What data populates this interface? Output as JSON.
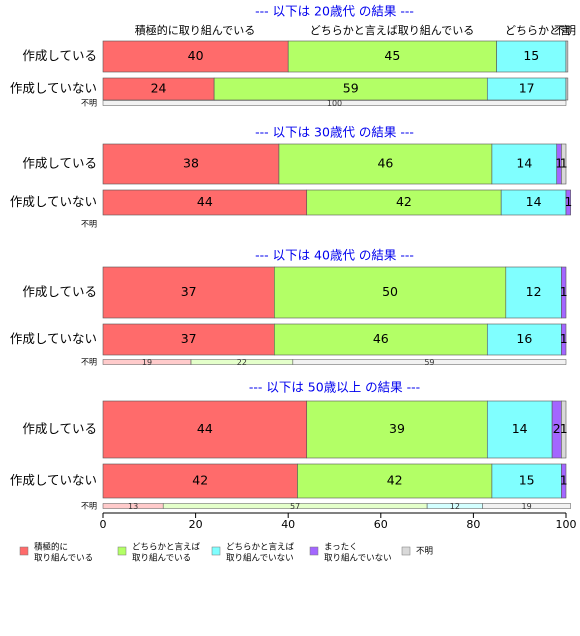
{
  "chart_data": {
    "type": "bar",
    "orientation": "horizontal",
    "stacked": true,
    "xlim": [
      0,
      100
    ],
    "x_ticks": [
      0,
      20,
      40,
      60,
      80,
      100
    ],
    "categories": [
      "積極的に取り組んでいる",
      "どちらかと言えば取り組んでいる",
      "どちらかと言えば取り組んでいない",
      "まったく取り組んでいない",
      "不明"
    ],
    "colors": [
      "#ff6b6b",
      "#b3ff66",
      "#80ffff",
      "#a366ff",
      "#d9d9d9"
    ],
    "header_labels": [
      "積極的に取り組んでいる",
      "どちらかと言えば取り組んでいる",
      "どちらかと言",
      "不明"
    ],
    "legend": [
      {
        "line1": "積極的に",
        "line2": "取り組んでいる"
      },
      {
        "line1": "どちらかと言えば",
        "line2": "取り組んでいる"
      },
      {
        "line1": "どちらかと言えば",
        "line2": "取り組んでいない"
      },
      {
        "line1": "まったく",
        "line2": "取り組んでいない"
      },
      {
        "line1": "不明",
        "line2": ""
      }
    ],
    "unknown_label": "不明",
    "panels": [
      {
        "title": "--- 以下は 20歳代 の結果 ---",
        "rows": [
          {
            "label": "作成している",
            "values": [
              40,
              45,
              15,
              0,
              0.4
            ]
          },
          {
            "label": "作成していない",
            "values": [
              24,
              59,
              17,
              0,
              0.4
            ]
          }
        ],
        "unknown": [
          0,
          0,
          0,
          0,
          100
        ]
      },
      {
        "title": "--- 以下は 30歳代 の結果 ---",
        "rows": [
          {
            "label": "作成している",
            "values": [
              38,
              46,
              14,
              1,
              1
            ]
          },
          {
            "label": "作成していない",
            "values": [
              44,
              42,
              14,
              1,
              0
            ]
          }
        ],
        "unknown": null
      },
      {
        "title": "--- 以下は 40歳代 の結果 ---",
        "rows": [
          {
            "label": "作成している",
            "values": [
              37,
              50,
              12,
              1,
              0
            ]
          },
          {
            "label": "作成していない",
            "values": [
              37,
              46,
              16,
              1,
              0
            ]
          }
        ],
        "unknown": [
          19,
          22,
          0,
          0,
          59
        ]
      },
      {
        "title": "--- 以下は 50歳以上 の結果 ---",
        "rows": [
          {
            "label": "作成している",
            "values": [
              44,
              39,
              14,
              2,
              1
            ]
          },
          {
            "label": "作成していない",
            "values": [
              42,
              42,
              15,
              1,
              0
            ]
          }
        ],
        "unknown": [
          13,
          57,
          12,
          0,
          19
        ]
      }
    ]
  }
}
